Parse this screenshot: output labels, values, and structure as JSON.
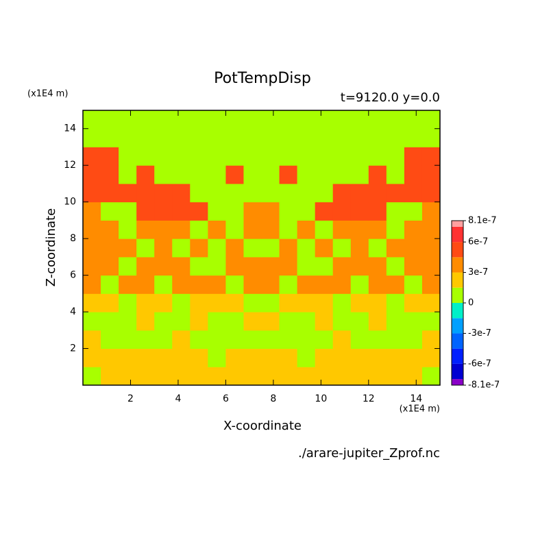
{
  "chart_data": {
    "type": "contour",
    "title": "PotTempDisp",
    "subtitle": "t=9120.0 y=0.0",
    "xlabel": "X-coordinate",
    "ylabel": "Z-coordinate",
    "x_unit": "(x1E4 m)",
    "y_unit": "(x1E4 m)",
    "source": "./arare-jupiter_Zprof.nc",
    "xlim": [
      0,
      15
    ],
    "ylim": [
      0,
      15
    ],
    "xticks": [
      2,
      4,
      6,
      8,
      10,
      12,
      14
    ],
    "yticks": [
      2,
      4,
      6,
      8,
      10,
      12,
      14
    ],
    "x": [
      0.375,
      1.125,
      1.875,
      2.625,
      3.375,
      4.125,
      4.875,
      5.625,
      6.375,
      7.125,
      7.875,
      8.625,
      9.375,
      10.125,
      10.875,
      11.625,
      12.375,
      13.125,
      13.875,
      14.625
    ],
    "y": [
      0.5,
      1.5,
      2.5,
      3.5,
      4.5,
      5.5,
      6.5,
      7.5,
      8.5,
      9.5,
      10.5,
      11.5,
      12.5,
      13.5,
      14.5
    ],
    "z": [
      [
        1e-07,
        2e-07,
        2e-07,
        2e-07,
        2e-07,
        2e-07,
        2e-07,
        2e-07,
        2e-07,
        2e-07,
        2e-07,
        2e-07,
        2e-07,
        2e-07,
        2e-07,
        2e-07,
        2e-07,
        2e-07,
        2e-07,
        1e-07
      ],
      [
        2e-07,
        2e-07,
        2e-07,
        2e-07,
        2e-07,
        2e-07,
        2e-07,
        1e-07,
        2e-07,
        2e-07,
        2e-07,
        2e-07,
        1e-07,
        2e-07,
        2e-07,
        2e-07,
        2e-07,
        2e-07,
        2e-07,
        2e-07
      ],
      [
        2e-07,
        1e-07,
        1e-07,
        1e-07,
        1e-07,
        2e-07,
        1e-07,
        1e-07,
        1e-07,
        1e-07,
        1e-07,
        1e-07,
        1e-07,
        1e-07,
        2e-07,
        1e-07,
        1e-07,
        1e-07,
        1e-07,
        2e-07
      ],
      [
        1e-07,
        1e-07,
        1e-07,
        2e-07,
        1e-07,
        1e-07,
        2e-07,
        1e-07,
        1e-07,
        2e-07,
        2e-07,
        1e-07,
        1e-07,
        2e-07,
        1e-07,
        1e-07,
        2e-07,
        1e-07,
        1e-07,
        1e-07
      ],
      [
        2e-07,
        2e-07,
        1e-07,
        2e-07,
        2e-07,
        1e-07,
        2e-07,
        2e-07,
        2e-07,
        1e-07,
        1e-07,
        2e-07,
        2e-07,
        2e-07,
        1e-07,
        2e-07,
        2e-07,
        1e-07,
        2e-07,
        2e-07
      ],
      [
        4e-07,
        1e-07,
        4e-07,
        4e-07,
        1e-07,
        4e-07,
        4e-07,
        4e-07,
        1e-07,
        4e-07,
        4e-07,
        1e-07,
        4e-07,
        4e-07,
        4e-07,
        1e-07,
        4e-07,
        4e-07,
        1e-07,
        4e-07
      ],
      [
        4e-07,
        4e-07,
        1e-07,
        4e-07,
        4e-07,
        4e-07,
        1e-07,
        1e-07,
        4e-07,
        4e-07,
        4e-07,
        4e-07,
        1e-07,
        1e-07,
        4e-07,
        4e-07,
        4e-07,
        1e-07,
        4e-07,
        4e-07
      ],
      [
        4e-07,
        4e-07,
        4e-07,
        1e-07,
        4e-07,
        1e-07,
        4e-07,
        1e-07,
        4e-07,
        1e-07,
        1e-07,
        4e-07,
        1e-07,
        4e-07,
        1e-07,
        4e-07,
        1e-07,
        4e-07,
        4e-07,
        4e-07
      ],
      [
        4e-07,
        4e-07,
        1e-07,
        4e-07,
        4e-07,
        4e-07,
        1e-07,
        4e-07,
        1e-07,
        4e-07,
        4e-07,
        1e-07,
        4e-07,
        1e-07,
        4e-07,
        4e-07,
        4e-07,
        1e-07,
        4e-07,
        4e-07
      ],
      [
        4e-07,
        1e-07,
        1e-07,
        5e-07,
        5e-07,
        5e-07,
        5e-07,
        1e-07,
        1e-07,
        4e-07,
        4e-07,
        1e-07,
        1e-07,
        5e-07,
        5e-07,
        5e-07,
        5e-07,
        1e-07,
        1e-07,
        4e-07
      ],
      [
        5e-07,
        5e-07,
        5e-07,
        5e-07,
        5e-07,
        5e-07,
        1e-07,
        1e-07,
        1e-07,
        1e-07,
        1e-07,
        1e-07,
        1e-07,
        1e-07,
        5e-07,
        5e-07,
        5e-07,
        5e-07,
        5e-07,
        5e-07
      ],
      [
        5e-07,
        5e-07,
        1e-07,
        5e-07,
        1e-07,
        1e-07,
        1e-07,
        1e-07,
        5e-07,
        1e-07,
        1e-07,
        5e-07,
        1e-07,
        1e-07,
        1e-07,
        1e-07,
        5e-07,
        1e-07,
        5e-07,
        5e-07
      ],
      [
        5e-07,
        5e-07,
        1e-07,
        1e-07,
        1e-07,
        1e-07,
        1e-07,
        1e-07,
        1e-07,
        1e-07,
        1e-07,
        1e-07,
        1e-07,
        1e-07,
        1e-07,
        1e-07,
        1e-07,
        1e-07,
        5e-07,
        5e-07
      ],
      [
        1e-07,
        1e-07,
        1e-07,
        1e-07,
        1e-07,
        1e-07,
        1e-07,
        1e-07,
        1e-07,
        1e-07,
        1e-07,
        1e-07,
        1e-07,
        1e-07,
        1e-07,
        1e-07,
        1e-07,
        1e-07,
        1e-07,
        1e-07
      ],
      [
        1e-07,
        1e-07,
        1e-07,
        1e-07,
        1e-07,
        1e-07,
        1e-07,
        1e-07,
        1e-07,
        1e-07,
        1e-07,
        1e-07,
        1e-07,
        1e-07,
        1e-07,
        1e-07,
        1e-07,
        1e-07,
        1e-07,
        1e-07
      ]
    ],
    "levels": [
      -8.1e-07,
      -7.5e-07,
      -6e-07,
      -4.5e-07,
      -3e-07,
      -1.5e-07,
      0,
      1.5e-07,
      3e-07,
      4.5e-07,
      6e-07,
      7.5e-07,
      8.1e-07
    ],
    "colors": [
      "#8a00c8",
      "#0000d2",
      "#0020ff",
      "#0064ff",
      "#00a0ff",
      "#00f0c8",
      "#a8ff00",
      "#ffc800",
      "#ff8c00",
      "#ff4b14",
      "#ff3232",
      "#ffa0a0"
    ],
    "cticks": [
      {
        "value": 8.1e-07,
        "label": "8.1e-7"
      },
      {
        "value": 6e-07,
        "label": "6e-7"
      },
      {
        "value": 3e-07,
        "label": "3e-7"
      },
      0,
      {
        "value": -3e-07,
        "label": "-3e-7"
      },
      {
        "value": -6e-07,
        "label": "-6e-7"
      },
      {
        "value": -8.1e-07,
        "label": "-8.1e-7"
      }
    ]
  }
}
